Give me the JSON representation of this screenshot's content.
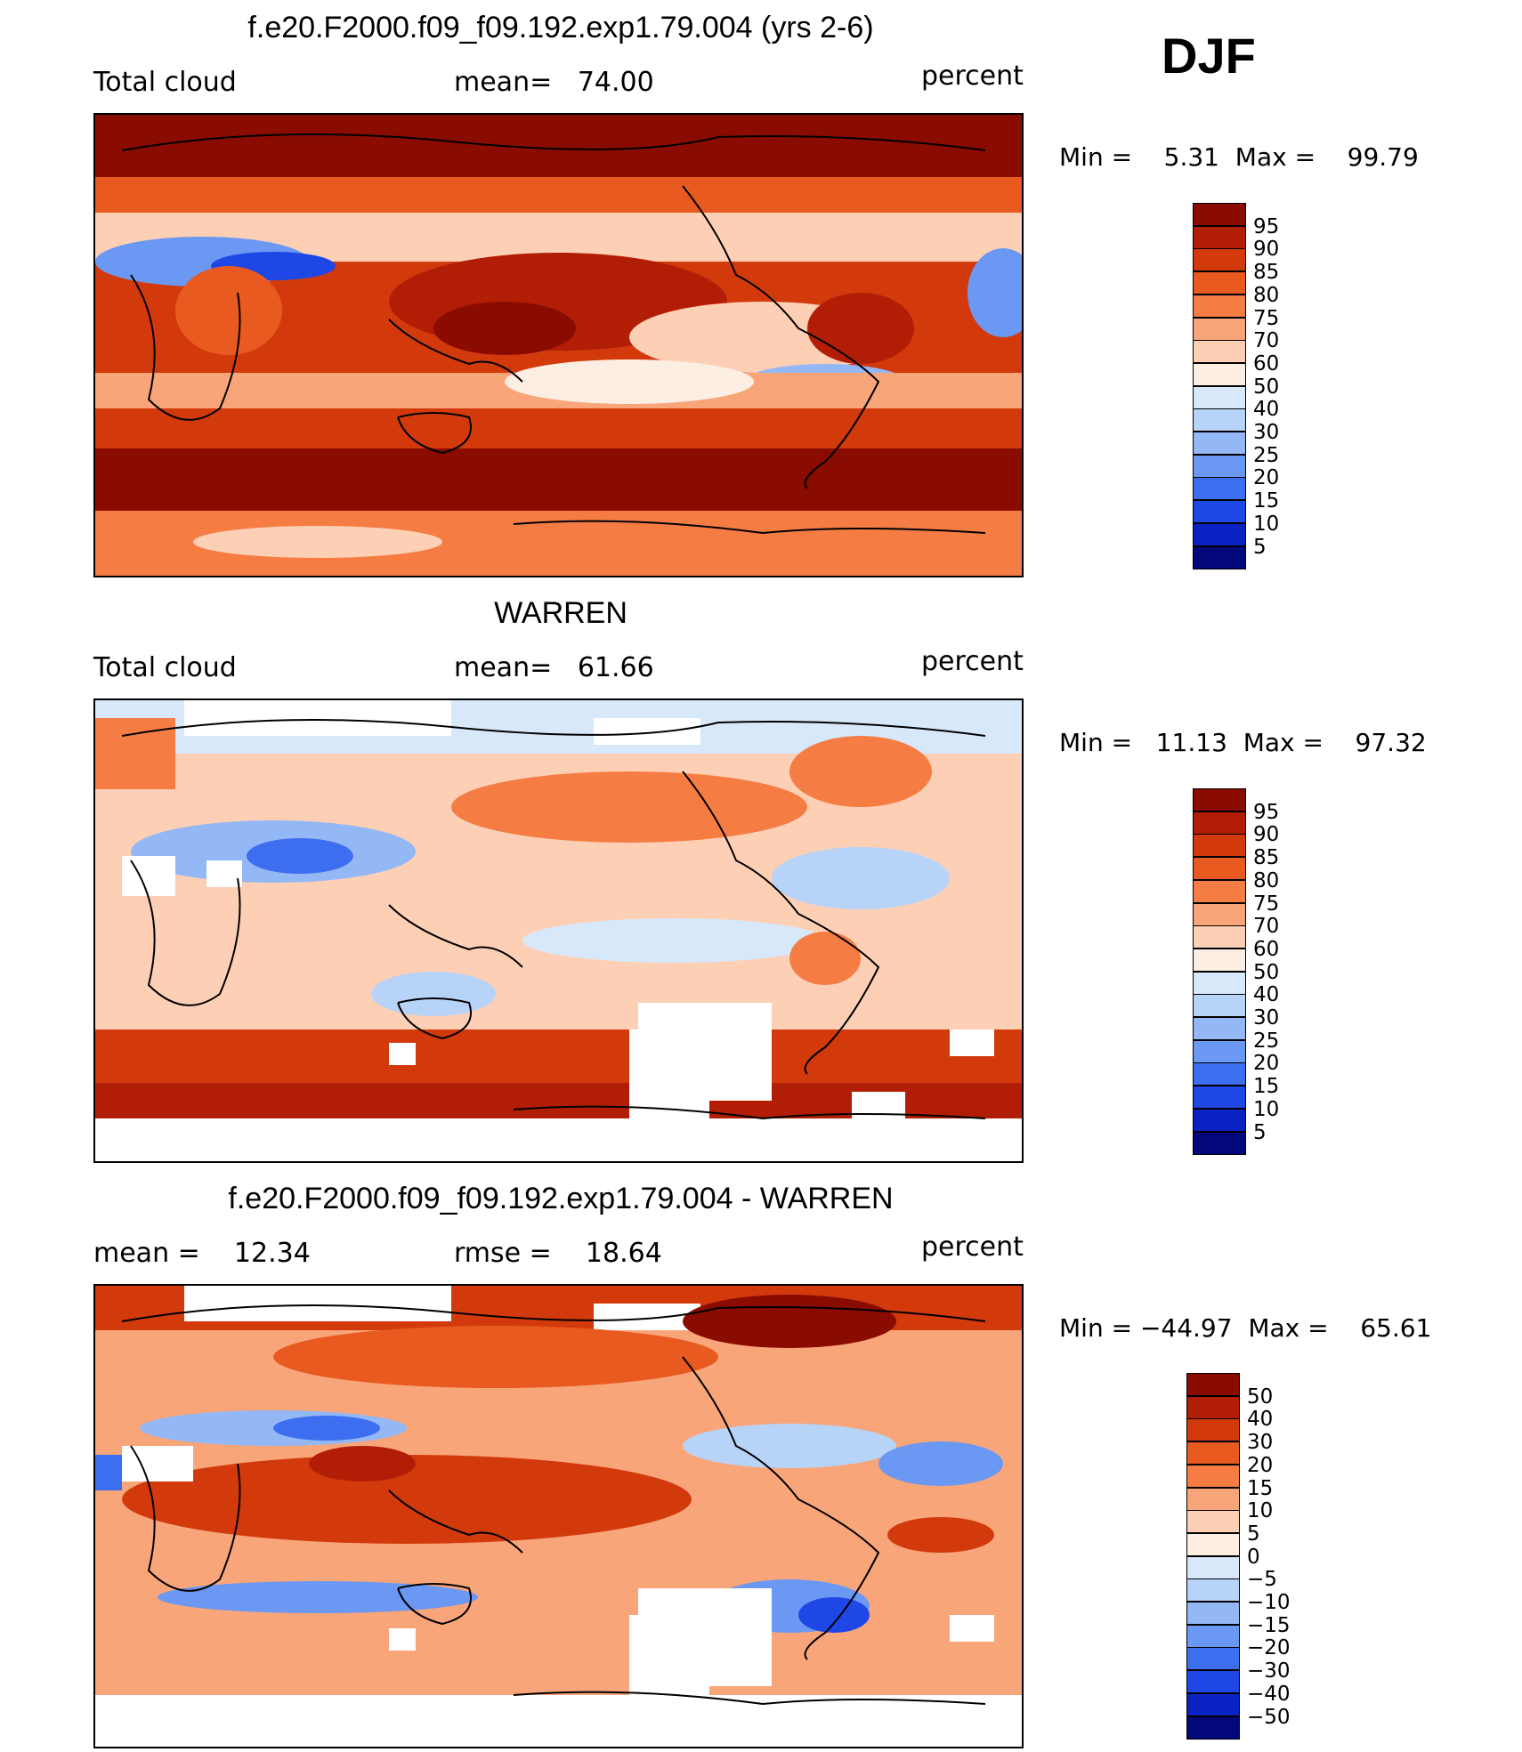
{
  "season": "DJF",
  "panels": [
    {
      "id": "model",
      "title": "f.e20.F2000.f09_f09.192.exp1.79.004 (yrs 2-6)",
      "left_label": "Total cloud",
      "mid_label": "mean=   74.00",
      "units": "percent",
      "minmax": "Min =    5.31  Max =    99.79",
      "colorbar_labels": [
        "95",
        "90",
        "85",
        "80",
        "75",
        "70",
        "60",
        "50",
        "40",
        "30",
        "25",
        "20",
        "15",
        "10",
        "5"
      ]
    },
    {
      "id": "obs",
      "title": "WARREN",
      "left_label": "Total cloud",
      "mid_label": "mean=   61.66",
      "units": "percent",
      "minmax": "Min =   11.13  Max =    97.32",
      "colorbar_labels": [
        "95",
        "90",
        "85",
        "80",
        "75",
        "70",
        "60",
        "50",
        "40",
        "30",
        "25",
        "20",
        "15",
        "10",
        "5"
      ]
    },
    {
      "id": "diff",
      "title": "f.e20.F2000.f09_f09.192.exp1.79.004 - WARREN",
      "left_label": "mean =    12.34",
      "mid_label": "rmse =    18.64",
      "units": "percent",
      "minmax": "Min = −44.97  Max =    65.61",
      "colorbar_labels": [
        "50",
        "40",
        "30",
        "20",
        "15",
        "10",
        "5",
        "0",
        "−5",
        "−10",
        "−15",
        "−20",
        "−30",
        "−40",
        "−50"
      ]
    }
  ],
  "colors": {
    "abs_scale": [
      "#8a0c00",
      "#b11e05",
      "#d23a0c",
      "#e85a1f",
      "#f57d44",
      "#f9a57a",
      "#fdd0b5",
      "#fdeee3",
      "#d8e8fb",
      "#b7d3f7",
      "#93b8f5",
      "#6a98f3",
      "#3d6ef0",
      "#1f47e6",
      "#0a22c4",
      "#02087a"
    ],
    "diff_scale": [
      "#8a0c00",
      "#b11e05",
      "#d23a0c",
      "#e85a1f",
      "#f57d44",
      "#f9a57a",
      "#fdd0b5",
      "#fdeee3",
      "#d8e8fb",
      "#b7d3f7",
      "#93b8f5",
      "#6a98f3",
      "#3d6ef0",
      "#1f47e6",
      "#0a22c4",
      "#02087a"
    ]
  }
}
